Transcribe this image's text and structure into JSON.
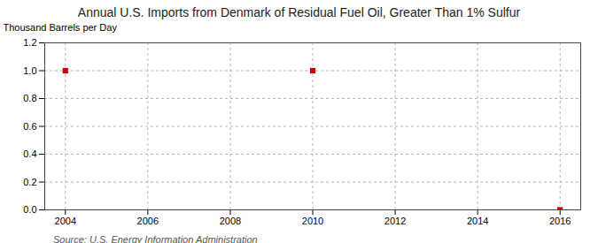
{
  "chart_data": {
    "type": "scatter",
    "title": "Annual U.S. Imports from Denmark of Residual Fuel Oil, Greater Than 1% Sulfur",
    "ylabel": "Thousand Barrels per Day",
    "source": "Source: U.S. Energy Information Administration",
    "x": [
      2004,
      2010,
      2016
    ],
    "values": [
      1.0,
      1.0,
      0.0
    ],
    "color": "#cc0000",
    "marker": "square",
    "xlim": [
      2003.5,
      2016.5
    ],
    "ylim": [
      0.0,
      1.2
    ],
    "xticks": [
      2004,
      2006,
      2008,
      2010,
      2012,
      2014,
      2016
    ],
    "yticks": [
      {
        "value": 0.0,
        "label": "0.0"
      },
      0.2,
      0.4,
      0.6,
      0.8,
      {
        "value": 1.0,
        "label": "1.0"
      },
      1.2
    ],
    "grid": true
  }
}
